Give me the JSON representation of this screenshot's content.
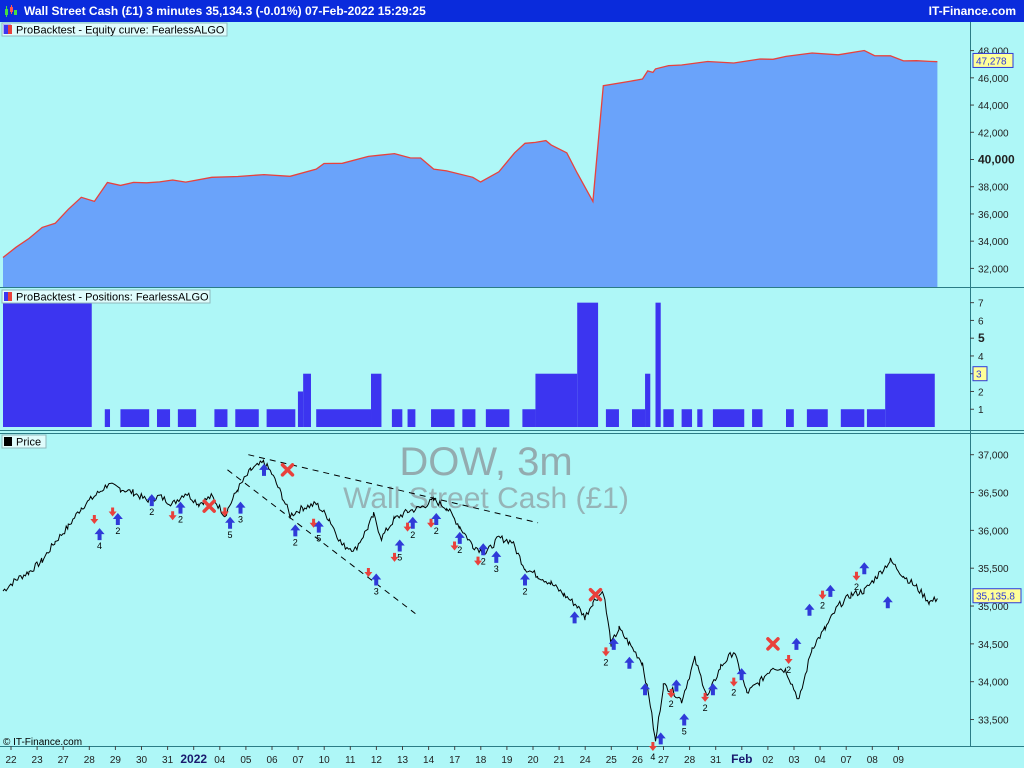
{
  "window": {
    "title": "Wall Street Cash (£1) 3 minutes 35,134.3 (-0.01%) 07-Feb-2022 15:29:25",
    "brand": "IT-Finance.com"
  },
  "colors": {
    "background": "#aef7f7",
    "titlebar": "#0a2bdc",
    "equity_fill": "#6aa3fa",
    "equity_line": "#e8413c",
    "positions_fill": "#3c35f0",
    "buy_arrow": "#2f3ad8",
    "sell_arrow": "#e8413c",
    "exit_mark": "#e8413c",
    "price_line": "#000000",
    "watermark": "#8e9ea2"
  },
  "chart_data": [
    {
      "type": "area",
      "panel": "equity",
      "legend": "ProBacktest - Equity curve: FearlessALGO",
      "ylim": [
        31000,
        49000
      ],
      "yticks": [
        "32,000",
        "34,000",
        "36,000",
        "38,000",
        "40,000",
        "42,000",
        "44,000",
        "46,000",
        "48,000"
      ],
      "ytick_values": [
        32000,
        34000,
        36000,
        38000,
        40000,
        42000,
        44000,
        46000,
        48000
      ],
      "bold_tick": "40,000",
      "last_value_label": "47,278",
      "last_value": 47278,
      "x": [
        0,
        0.5,
        1,
        1.5,
        2,
        2.5,
        3,
        3.5,
        4,
        4.5,
        5,
        5.5,
        6,
        6.5,
        7,
        8,
        9,
        10,
        11,
        12,
        12.3,
        13,
        14,
        15,
        15.6,
        16,
        16.5,
        17,
        18,
        18.3,
        19,
        19.6,
        20,
        20.4,
        20.8,
        21,
        21.6,
        22,
        22.6,
        23,
        24,
        24.5,
        24.7,
        24.9,
        25,
        25.5,
        26,
        27,
        28,
        29,
        29.5,
        30,
        31,
        32,
        33,
        33.4,
        34,
        34.5,
        35,
        35.5,
        35.8
      ],
      "values": [
        32800,
        33500,
        34300,
        34900,
        35400,
        36300,
        37200,
        37000,
        38200,
        38200,
        38250,
        38300,
        38400,
        38400,
        38450,
        38600,
        38800,
        38900,
        38700,
        39400,
        39600,
        39800,
        40200,
        40400,
        40200,
        40000,
        39400,
        39100,
        38700,
        38400,
        39000,
        40600,
        41100,
        41300,
        41400,
        41000,
        40600,
        38900,
        37000,
        45400,
        45700,
        46000,
        46400,
        46500,
        46600,
        46900,
        47000,
        47100,
        47200,
        47300,
        47400,
        47600,
        47750,
        47800,
        47900,
        47700,
        47600,
        47200,
        47350,
        47100,
        47278
      ]
    },
    {
      "type": "bar",
      "panel": "positions",
      "legend": "ProBacktest - Positions: FearlessALGO",
      "ylim": [
        0,
        7.6
      ],
      "yticks": [
        "1",
        "2",
        "3",
        "4",
        "5",
        "6",
        "7"
      ],
      "ytick_values": [
        1,
        2,
        3,
        4,
        5,
        6,
        7
      ],
      "bold_tick": "5",
      "last_value_label": "3",
      "last_value": 3,
      "segments": [
        [
          0,
          3.4,
          7
        ],
        [
          3.9,
          4.1,
          1
        ],
        [
          4.5,
          5.6,
          1
        ],
        [
          5.9,
          6.4,
          1
        ],
        [
          6.7,
          7.4,
          1
        ],
        [
          8.1,
          8.6,
          1
        ],
        [
          8.9,
          9.8,
          1
        ],
        [
          10.1,
          11.2,
          1
        ],
        [
          11.3,
          11.5,
          2
        ],
        [
          11.5,
          11.8,
          3
        ],
        [
          12.0,
          14.1,
          1
        ],
        [
          14.1,
          14.5,
          3
        ],
        [
          14.9,
          15.3,
          1
        ],
        [
          15.5,
          15.8,
          1
        ],
        [
          16.4,
          17.3,
          1
        ],
        [
          17.6,
          18.1,
          1
        ],
        [
          18.5,
          19.4,
          1
        ],
        [
          19.9,
          20.4,
          1
        ],
        [
          20.4,
          22.0,
          3
        ],
        [
          22.0,
          22.8,
          7
        ],
        [
          23.1,
          23.6,
          1
        ],
        [
          24.1,
          24.6,
          1
        ],
        [
          24.6,
          24.8,
          3
        ],
        [
          25.0,
          25.2,
          7
        ],
        [
          25.3,
          25.7,
          1
        ],
        [
          26.0,
          26.4,
          1
        ],
        [
          26.6,
          26.8,
          1
        ],
        [
          27.2,
          28.4,
          1
        ],
        [
          28.7,
          29.1,
          1
        ],
        [
          30.0,
          30.3,
          1
        ],
        [
          30.8,
          31.6,
          1
        ],
        [
          32.1,
          33.0,
          1
        ],
        [
          33.1,
          33.8,
          1
        ],
        [
          33.8,
          35.7,
          3
        ]
      ]
    },
    {
      "type": "line",
      "panel": "price",
      "legend": "Price",
      "watermark_title": "DOW, 3m",
      "watermark_subtitle": "Wall Street Cash (£1)",
      "ylim": [
        33150,
        37300
      ],
      "yticks": [
        "33,500",
        "34,000",
        "34,500",
        "35,000",
        "35,500",
        "36,000",
        "36,500",
        "37,000"
      ],
      "ytick_values": [
        33500,
        34000,
        34500,
        35000,
        35500,
        36000,
        36500,
        37000
      ],
      "last_value_label": "35,135.8",
      "last_value": 35135.8,
      "x": [
        0,
        0.5,
        1,
        1.5,
        2,
        2.5,
        3,
        3.5,
        4,
        4.5,
        5,
        5.5,
        6,
        6.5,
        7,
        7.5,
        8,
        8.5,
        9,
        9.5,
        10,
        10.3,
        10.7,
        11,
        11.5,
        12,
        12.5,
        13,
        13.5,
        14,
        14.2,
        14.5,
        15,
        15.5,
        16,
        16.5,
        17,
        17.5,
        18,
        18.5,
        19,
        19.5,
        20,
        20.5,
        21,
        21.5,
        22,
        22.3,
        22.6,
        23,
        23.3,
        23.6,
        24,
        24.5,
        24.8,
        25,
        25.3,
        25.6,
        26,
        26.5,
        27,
        27.5,
        28,
        28.5,
        29,
        29.5,
        30,
        30.5,
        31,
        31.5,
        32,
        32.5,
        33,
        33.5,
        34,
        34.5,
        35,
        35.5,
        35.8
      ],
      "values": [
        35200,
        35350,
        35450,
        35600,
        35850,
        36050,
        36300,
        36450,
        36600,
        36550,
        36500,
        36400,
        36450,
        36350,
        36500,
        36350,
        36450,
        36200,
        36550,
        36800,
        36900,
        36750,
        36450,
        36200,
        36300,
        36350,
        36150,
        35800,
        35750,
        36050,
        36200,
        35900,
        36150,
        36250,
        36300,
        36400,
        36300,
        36050,
        35800,
        35700,
        35900,
        35850,
        35500,
        35400,
        35300,
        35150,
        35000,
        34850,
        35050,
        35200,
        34500,
        34700,
        34500,
        34250,
        33700,
        33200,
        33950,
        33900,
        33750,
        34300,
        33800,
        34200,
        34400,
        33850,
        34000,
        34200,
        34150,
        33750,
        34450,
        34700,
        35000,
        35150,
        35200,
        35400,
        35600,
        35400,
        35250,
        35050,
        35100
      ],
      "trendlines": [
        {
          "from": [
            9.4,
            37000
          ],
          "to": [
            20.5,
            36100
          ]
        },
        {
          "from": [
            8.6,
            36800
          ],
          "to": [
            15.8,
            34900
          ]
        }
      ],
      "markers": [
        {
          "x": 3.5,
          "price": 36150,
          "type": "sell"
        },
        {
          "x": 3.7,
          "price": 35950,
          "type": "buy",
          "label": "4"
        },
        {
          "x": 4.2,
          "price": 36250,
          "type": "sell"
        },
        {
          "x": 4.4,
          "price": 36150,
          "type": "buy",
          "label": "2"
        },
        {
          "x": 5.7,
          "price": 36400,
          "type": "buy",
          "label": "2"
        },
        {
          "x": 6.5,
          "price": 36200,
          "type": "sell"
        },
        {
          "x": 6.8,
          "price": 36300,
          "type": "buy",
          "label": "2"
        },
        {
          "x": 7.9,
          "price": 36320,
          "type": "exit"
        },
        {
          "x": 8.5,
          "price": 36250,
          "type": "sell"
        },
        {
          "x": 8.7,
          "price": 36100,
          "type": "buy",
          "label": "5"
        },
        {
          "x": 9.1,
          "price": 36300,
          "type": "buy",
          "label": "3"
        },
        {
          "x": 10.0,
          "price": 36800,
          "type": "buy"
        },
        {
          "x": 10.9,
          "price": 36800,
          "type": "exit"
        },
        {
          "x": 11.2,
          "price": 36000,
          "type": "buy",
          "label": "2"
        },
        {
          "x": 11.9,
          "price": 36100,
          "type": "sell"
        },
        {
          "x": 12.1,
          "price": 36050,
          "type": "buy",
          "label": "5"
        },
        {
          "x": 14.0,
          "price": 35450,
          "type": "sell"
        },
        {
          "x": 14.3,
          "price": 35350,
          "type": "buy",
          "label": "3"
        },
        {
          "x": 15.0,
          "price": 35650,
          "type": "sell"
        },
        {
          "x": 15.2,
          "price": 35800,
          "type": "buy",
          "label": "5"
        },
        {
          "x": 15.5,
          "price": 36050,
          "type": "sell"
        },
        {
          "x": 15.7,
          "price": 36100,
          "type": "buy",
          "label": "2"
        },
        {
          "x": 16.4,
          "price": 36100,
          "type": "sell"
        },
        {
          "x": 16.6,
          "price": 36150,
          "type": "buy",
          "label": "2"
        },
        {
          "x": 17.3,
          "price": 35800,
          "type": "sell"
        },
        {
          "x": 17.5,
          "price": 35900,
          "type": "buy",
          "label": "2"
        },
        {
          "x": 18.2,
          "price": 35600,
          "type": "sell"
        },
        {
          "x": 18.4,
          "price": 35750,
          "type": "buy",
          "label": "2"
        },
        {
          "x": 18.9,
          "price": 35650,
          "type": "buy",
          "label": "3"
        },
        {
          "x": 20.0,
          "price": 35350,
          "type": "buy",
          "label": "2"
        },
        {
          "x": 21.9,
          "price": 34850,
          "type": "buy"
        },
        {
          "x": 22.7,
          "price": 35150,
          "type": "exit"
        },
        {
          "x": 23.1,
          "price": 34400,
          "type": "sell",
          "label": "2"
        },
        {
          "x": 23.4,
          "price": 34500,
          "type": "buy"
        },
        {
          "x": 24.0,
          "price": 34250,
          "type": "buy"
        },
        {
          "x": 24.6,
          "price": 33900,
          "type": "buy"
        },
        {
          "x": 24.9,
          "price": 33150,
          "type": "sell",
          "label": "4"
        },
        {
          "x": 25.2,
          "price": 33250,
          "type": "buy"
        },
        {
          "x": 25.6,
          "price": 33850,
          "type": "sell",
          "label": "2"
        },
        {
          "x": 25.8,
          "price": 33950,
          "type": "buy"
        },
        {
          "x": 26.1,
          "price": 33500,
          "type": "buy",
          "label": "5"
        },
        {
          "x": 26.9,
          "price": 33800,
          "type": "sell",
          "label": "2"
        },
        {
          "x": 27.2,
          "price": 33900,
          "type": "buy"
        },
        {
          "x": 28.0,
          "price": 34000,
          "type": "sell",
          "label": "2"
        },
        {
          "x": 28.3,
          "price": 34100,
          "type": "buy"
        },
        {
          "x": 29.5,
          "price": 34500,
          "type": "exit"
        },
        {
          "x": 30.1,
          "price": 34300,
          "type": "sell",
          "label": "2"
        },
        {
          "x": 30.4,
          "price": 34500,
          "type": "buy"
        },
        {
          "x": 30.9,
          "price": 34950,
          "type": "buy"
        },
        {
          "x": 31.4,
          "price": 35150,
          "type": "sell",
          "label": "2"
        },
        {
          "x": 31.7,
          "price": 35200,
          "type": "buy"
        },
        {
          "x": 32.7,
          "price": 35400,
          "type": "sell",
          "label": "2"
        },
        {
          "x": 33.0,
          "price": 35500,
          "type": "buy"
        },
        {
          "x": 33.9,
          "price": 35050,
          "type": "buy"
        }
      ],
      "x_tick_labels": [
        "22",
        "23",
        "27",
        "28",
        "29",
        "30",
        "31",
        "2022",
        "04",
        "05",
        "06",
        "07",
        "10",
        "11",
        "12",
        "13",
        "14",
        "17",
        "18",
        "19",
        "20",
        "21",
        "24",
        "25",
        "26",
        "27",
        "28",
        "31",
        "Feb",
        "02",
        "03",
        "04",
        "07",
        "08",
        "09"
      ],
      "bold_x_labels": [
        "2022",
        "Feb"
      ]
    }
  ],
  "footer": {
    "copyright": "© IT-Finance.com"
  }
}
